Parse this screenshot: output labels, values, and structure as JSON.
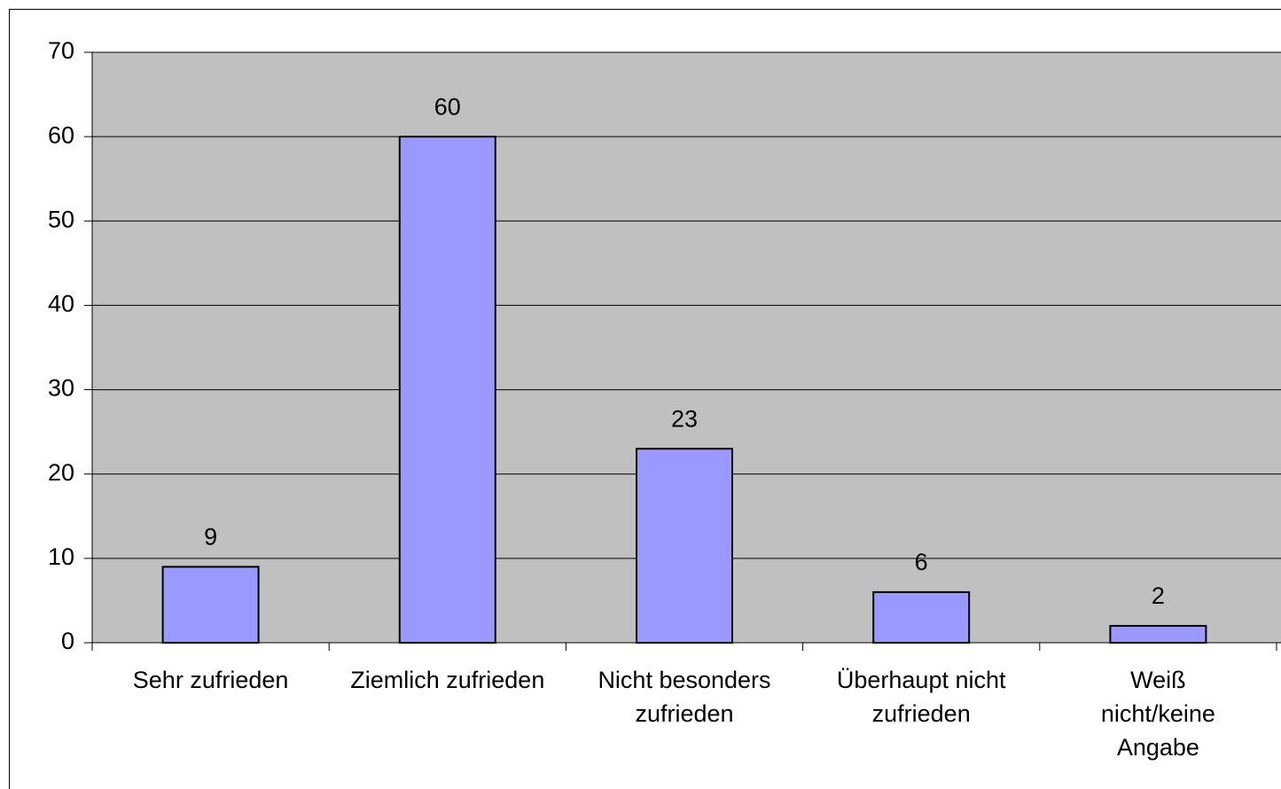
{
  "chart_data": {
    "type": "bar",
    "categories": [
      "Sehr zufrieden",
      "Ziemlich zufrieden",
      "Nicht besonders zufrieden",
      "Überhaupt nicht zufrieden",
      "Weiß nicht/keine Angabe"
    ],
    "values": [
      9,
      60,
      23,
      6,
      2
    ],
    "color": "#9999ff",
    "ylim": [
      0,
      70
    ],
    "yticks": [
      0,
      10,
      20,
      30,
      40,
      50,
      60,
      70
    ],
    "grid": true
  }
}
